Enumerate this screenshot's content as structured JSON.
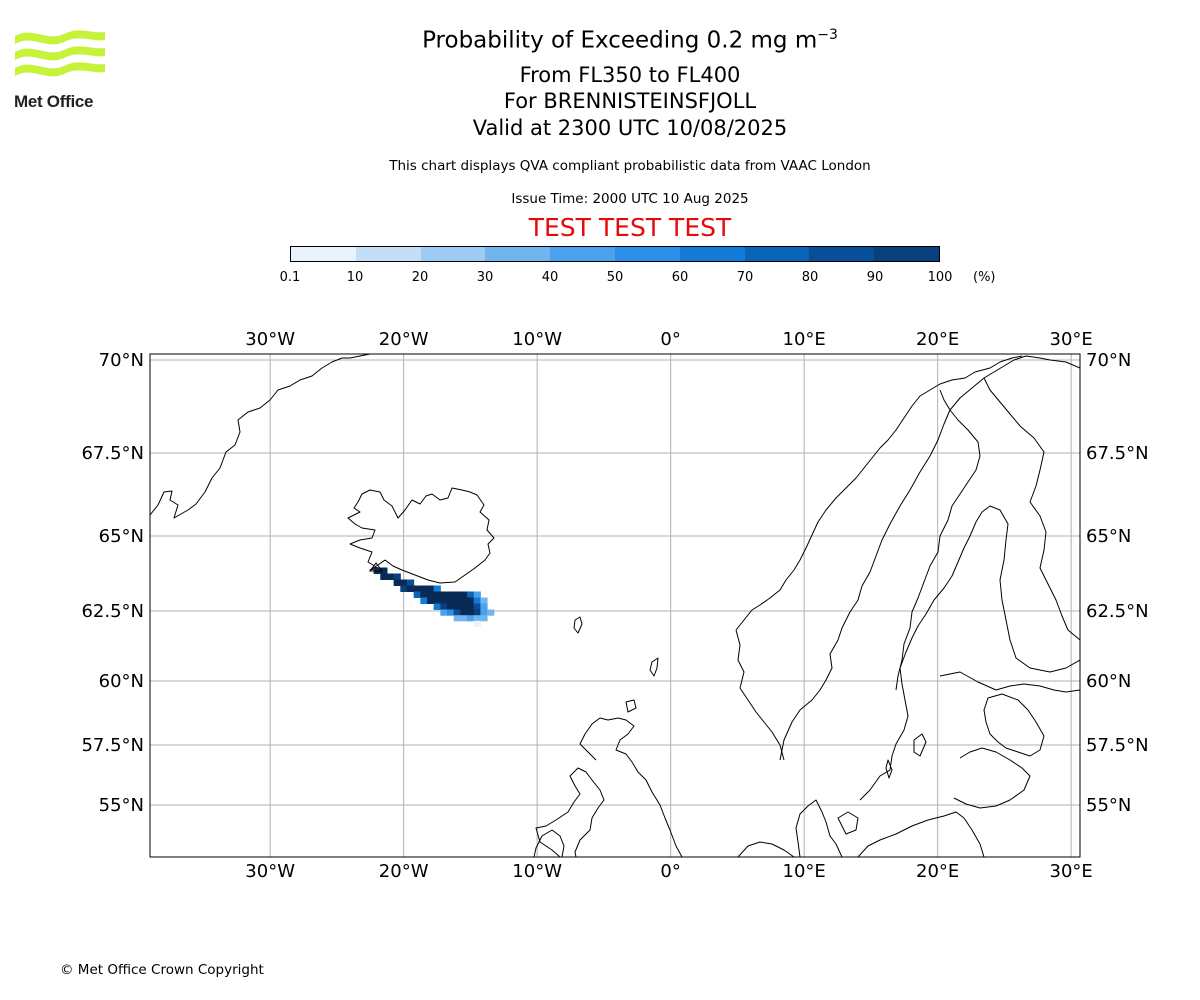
{
  "header": {
    "title_main": "Probability of Exceeding 0.2 mg m",
    "title_exponent": "−3",
    "levels": "From FL350 to FL400",
    "volcano": "For BRENNISTEINSFJOLL",
    "valid": "Valid at 2300 UTC 10/08/2025",
    "note": "This chart displays QVA compliant probabilistic data from VAAC London",
    "issue": "Issue Time: 2000 UTC 10 Aug 2025",
    "test_banner": "TEST TEST TEST"
  },
  "logo": {
    "text": "Met Office",
    "color": "#c6f23a",
    "icon": "met-office-wave-logo"
  },
  "colorbar": {
    "ticks": [
      "0.1",
      "10",
      "20",
      "30",
      "40",
      "50",
      "60",
      "70",
      "80",
      "90",
      "100"
    ],
    "unit": "(%)",
    "colors": [
      "#e8f3fd",
      "#c3def6",
      "#9ecbf2",
      "#72b4ee",
      "#4aa1ee",
      "#2c8fea",
      "#127ad8",
      "#0a64b8",
      "#094e98",
      "#093f7a",
      "#082a55"
    ]
  },
  "map": {
    "lon_range": [
      -39,
      30.5
    ],
    "lat_range": [
      53,
      70.2
    ],
    "lon_ticks": [
      {
        "value": -30,
        "label": "30°W"
      },
      {
        "value": -20,
        "label": "20°W"
      },
      {
        "value": -10,
        "label": "10°W"
      },
      {
        "value": 0,
        "label": "0°"
      },
      {
        "value": 10,
        "label": "10°E"
      },
      {
        "value": 20,
        "label": "20°E"
      },
      {
        "value": 30,
        "label": "30°E"
      }
    ],
    "lat_ticks": [
      {
        "value": 70,
        "label": "70°N"
      },
      {
        "value": 67.5,
        "label": "67.5°N"
      },
      {
        "value": 65,
        "label": "65°N"
      },
      {
        "value": 62.5,
        "label": "62.5°N"
      },
      {
        "value": 60,
        "label": "60°N"
      },
      {
        "value": 57.5,
        "label": "57.5°N"
      },
      {
        "value": 55,
        "label": "55°N"
      }
    ],
    "plume_cells": [
      {
        "lon": -22.0,
        "lat": 63.85,
        "p": 90
      },
      {
        "lon": -21.5,
        "lat": 63.85,
        "p": 95
      },
      {
        "lon": -21.5,
        "lat": 63.65,
        "p": 95
      },
      {
        "lon": -21.0,
        "lat": 63.65,
        "p": 95
      },
      {
        "lon": -20.5,
        "lat": 63.65,
        "p": 85
      },
      {
        "lon": -20.5,
        "lat": 63.45,
        "p": 95
      },
      {
        "lon": -20.0,
        "lat": 63.45,
        "p": 95
      },
      {
        "lon": -19.5,
        "lat": 63.45,
        "p": 70
      },
      {
        "lon": -20.0,
        "lat": 63.25,
        "p": 80
      },
      {
        "lon": -19.5,
        "lat": 63.25,
        "p": 95
      },
      {
        "lon": -19.0,
        "lat": 63.25,
        "p": 95
      },
      {
        "lon": -18.5,
        "lat": 63.25,
        "p": 90
      },
      {
        "lon": -18.0,
        "lat": 63.25,
        "p": 95
      },
      {
        "lon": -17.5,
        "lat": 63.25,
        "p": 55
      },
      {
        "lon": -19.0,
        "lat": 63.05,
        "p": 60
      },
      {
        "lon": -18.5,
        "lat": 63.05,
        "p": 95
      },
      {
        "lon": -18.0,
        "lat": 63.05,
        "p": 95
      },
      {
        "lon": -17.5,
        "lat": 63.05,
        "p": 95
      },
      {
        "lon": -17.0,
        "lat": 63.05,
        "p": 95
      },
      {
        "lon": -16.5,
        "lat": 63.05,
        "p": 95
      },
      {
        "lon": -16.0,
        "lat": 63.05,
        "p": 95
      },
      {
        "lon": -15.5,
        "lat": 63.05,
        "p": 95
      },
      {
        "lon": -15.0,
        "lat": 63.05,
        "p": 60
      },
      {
        "lon": -14.5,
        "lat": 63.05,
        "p": 35
      },
      {
        "lon": -18.5,
        "lat": 62.85,
        "p": 55
      },
      {
        "lon": -18.0,
        "lat": 62.85,
        "p": 90
      },
      {
        "lon": -17.5,
        "lat": 62.85,
        "p": 95
      },
      {
        "lon": -17.0,
        "lat": 62.85,
        "p": 95
      },
      {
        "lon": -16.5,
        "lat": 62.85,
        "p": 95
      },
      {
        "lon": -16.0,
        "lat": 62.85,
        "p": 95
      },
      {
        "lon": -15.5,
        "lat": 62.85,
        "p": 95
      },
      {
        "lon": -15.0,
        "lat": 62.85,
        "p": 95
      },
      {
        "lon": -14.5,
        "lat": 62.85,
        "p": 55
      },
      {
        "lon": -14.0,
        "lat": 62.85,
        "p": 25
      },
      {
        "lon": -17.5,
        "lat": 62.65,
        "p": 50
      },
      {
        "lon": -17.0,
        "lat": 62.65,
        "p": 80
      },
      {
        "lon": -16.5,
        "lat": 62.65,
        "p": 95
      },
      {
        "lon": -16.0,
        "lat": 62.65,
        "p": 95
      },
      {
        "lon": -15.5,
        "lat": 62.65,
        "p": 95
      },
      {
        "lon": -15.0,
        "lat": 62.65,
        "p": 95
      },
      {
        "lon": -14.5,
        "lat": 62.65,
        "p": 75
      },
      {
        "lon": -14.0,
        "lat": 62.65,
        "p": 35
      },
      {
        "lon": -17.0,
        "lat": 62.45,
        "p": 30
      },
      {
        "lon": -16.5,
        "lat": 62.45,
        "p": 45
      },
      {
        "lon": -16.0,
        "lat": 62.45,
        "p": 75
      },
      {
        "lon": -15.5,
        "lat": 62.45,
        "p": 95
      },
      {
        "lon": -15.0,
        "lat": 62.45,
        "p": 95
      },
      {
        "lon": -14.5,
        "lat": 62.45,
        "p": 85
      },
      {
        "lon": -14.0,
        "lat": 62.45,
        "p": 35
      },
      {
        "lon": -13.5,
        "lat": 62.45,
        "p": 20
      },
      {
        "lon": -16.0,
        "lat": 62.25,
        "p": 25
      },
      {
        "lon": -15.5,
        "lat": 62.25,
        "p": 25
      },
      {
        "lon": -15.0,
        "lat": 62.25,
        "p": 30
      },
      {
        "lon": -14.5,
        "lat": 62.25,
        "p": 25
      },
      {
        "lon": -14.0,
        "lat": 62.25,
        "p": 20
      },
      {
        "lon": -14.5,
        "lat": 62.05,
        "p": 8
      }
    ]
  },
  "footer": {
    "copyright": "© Met Office Crown Copyright"
  }
}
